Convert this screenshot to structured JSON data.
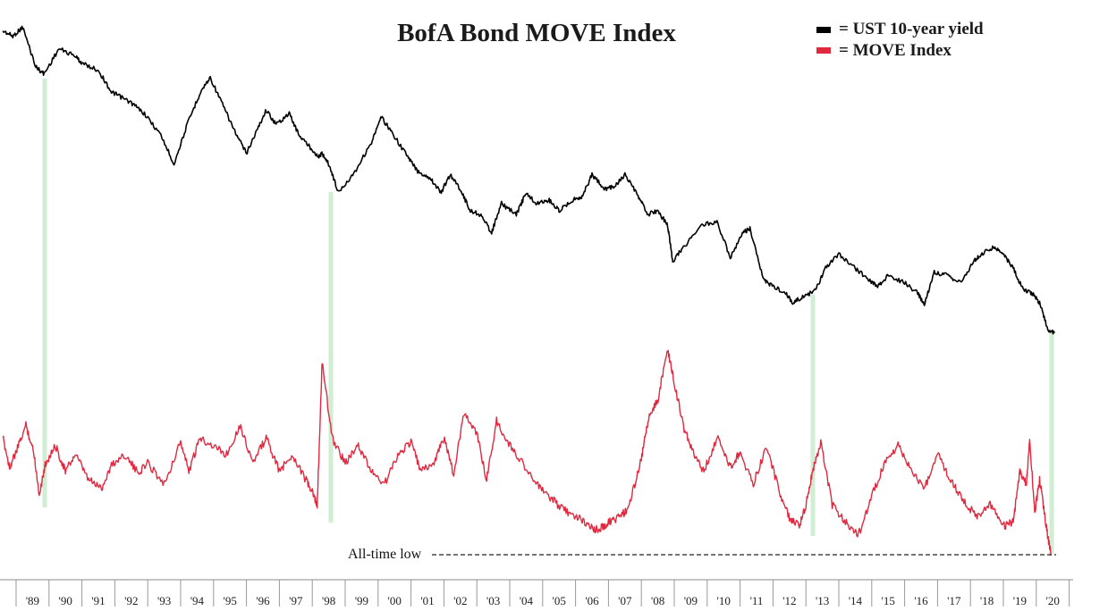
{
  "chart_data": {
    "type": "line",
    "title": "BofA Bond MOVE Index",
    "xlabel": "",
    "ylabel": "",
    "x_tick_labels": [
      "'89",
      "'90",
      "'91",
      "'92",
      "'93",
      "'94",
      "'95",
      "'96",
      "'97",
      "'98",
      "'99",
      "'00",
      "'01",
      "'02",
      "'03",
      "'04",
      "'05",
      "'06",
      "'07",
      "'08",
      "'09",
      "'10",
      "'11",
      "'12",
      "'13",
      "'14",
      "'15",
      "'16",
      "'17",
      "'18",
      "'19",
      "'20"
    ],
    "legend": {
      "placement": "top-right",
      "entries": [
        {
          "label": "= UST 10-year yield",
          "color": "#000000"
        },
        {
          "label": "= MOVE Index",
          "color": "#e0293f"
        }
      ]
    },
    "series": [
      {
        "name": "UST 10-year yield",
        "color": "#000000",
        "x": [
          1988.6,
          1988.9,
          1989.2,
          1989.6,
          1989.85,
          1990.3,
          1990.8,
          1991.0,
          1991.5,
          1991.9,
          1992.1,
          1992.5,
          1992.9,
          1993.4,
          1993.8,
          1994.2,
          1994.6,
          1994.9,
          1995.3,
          1995.7,
          1996.0,
          1996.3,
          1996.6,
          1996.9,
          1997.3,
          1997.6,
          1997.9,
          1998.2,
          1998.3,
          1998.5,
          1998.8,
          1999.3,
          1999.8,
          2000.1,
          2000.4,
          2000.9,
          2001.2,
          2001.6,
          2001.9,
          2002.2,
          2002.5,
          2002.8,
          2003.1,
          2003.45,
          2003.75,
          2004.2,
          2004.5,
          2004.8,
          2005.2,
          2005.5,
          2005.9,
          2006.2,
          2006.5,
          2006.9,
          2007.2,
          2007.5,
          2007.9,
          2008.2,
          2008.5,
          2008.8,
          2008.95,
          2009.3,
          2009.8,
          2010.3,
          2010.7,
          2011.1,
          2011.3,
          2011.7,
          2012.0,
          2012.4,
          2012.6,
          2012.9,
          2013.3,
          2013.6,
          2014.0,
          2014.5,
          2014.9,
          2015.2,
          2015.5,
          2016.0,
          2016.4,
          2016.6,
          2016.9,
          2017.3,
          2017.7,
          2018.1,
          2018.35,
          2018.7,
          2019.0,
          2019.3,
          2019.6,
          2019.9,
          2020.1,
          2020.35,
          2020.55
        ],
        "values": [
          9.1,
          8.95,
          9.2,
          8.1,
          7.9,
          8.6,
          8.4,
          8.2,
          8.0,
          7.4,
          7.3,
          7.1,
          6.8,
          6.2,
          5.4,
          6.5,
          7.4,
          7.8,
          7.0,
          6.2,
          5.7,
          6.3,
          6.9,
          6.5,
          6.8,
          6.2,
          5.9,
          5.6,
          5.7,
          5.4,
          4.6,
          5.2,
          6.0,
          6.7,
          6.3,
          5.6,
          5.2,
          5.0,
          4.6,
          5.1,
          4.7,
          4.1,
          4.0,
          3.5,
          4.3,
          4.0,
          4.6,
          4.3,
          4.4,
          4.1,
          4.4,
          4.5,
          5.1,
          4.7,
          4.8,
          5.1,
          4.5,
          4.0,
          4.1,
          3.7,
          2.7,
          3.1,
          3.7,
          3.8,
          2.8,
          3.5,
          3.6,
          2.2,
          2.0,
          1.8,
          1.55,
          1.7,
          1.9,
          2.5,
          2.9,
          2.5,
          2.2,
          2.0,
          2.3,
          2.1,
          1.8,
          1.5,
          2.4,
          2.3,
          2.1,
          2.7,
          2.9,
          3.1,
          2.9,
          2.5,
          1.9,
          1.8,
          1.55,
          0.8,
          0.7
        ]
      },
      {
        "name": "MOVE Index",
        "color": "#e0293f",
        "x": [
          1988.6,
          1988.8,
          1989.0,
          1989.3,
          1989.55,
          1989.7,
          1989.9,
          1990.2,
          1990.5,
          1990.8,
          1991.2,
          1991.6,
          1991.9,
          1992.3,
          1992.7,
          1993.0,
          1993.5,
          1994.0,
          1994.25,
          1994.6,
          1995.0,
          1995.4,
          1995.8,
          1996.2,
          1996.6,
          1997.0,
          1997.4,
          1997.8,
          1998.0,
          1998.15,
          1998.3,
          1998.6,
          1999.0,
          1999.4,
          1999.8,
          2000.2,
          2000.6,
          2001.0,
          2001.3,
          2001.7,
          2002.0,
          2002.3,
          2002.6,
          2003.0,
          2003.3,
          2003.6,
          2004.0,
          2004.4,
          2004.8,
          2005.2,
          2005.6,
          2006.0,
          2006.4,
          2006.7,
          2007.0,
          2007.3,
          2007.6,
          2008.0,
          2008.2,
          2008.5,
          2008.8,
          2009.0,
          2009.3,
          2009.6,
          2009.9,
          2010.3,
          2010.7,
          2011.0,
          2011.4,
          2011.8,
          2012.2,
          2012.5,
          2012.8,
          2013.0,
          2013.2,
          2013.45,
          2013.8,
          2014.2,
          2014.6,
          2015.0,
          2015.4,
          2015.8,
          2016.2,
          2016.6,
          2017.0,
          2017.4,
          2017.8,
          2018.2,
          2018.6,
          2019.0,
          2019.3,
          2019.5,
          2019.7,
          2019.8,
          2019.95,
          2020.1,
          2020.3,
          2020.45
        ],
        "values": [
          112,
          98,
          105,
          118,
          104,
          85,
          100,
          108,
          96,
          104,
          92,
          88,
          99,
          104,
          95,
          100,
          90,
          110,
          96,
          112,
          108,
          104,
          118,
          100,
          112,
          96,
          104,
          92,
          86,
          80,
          148,
          112,
          100,
          108,
          96,
          90,
          104,
          110,
          96,
          100,
          112,
          94,
          124,
          114,
          92,
          120,
          108,
          100,
          90,
          84,
          78,
          75,
          70,
          68,
          72,
          74,
          78,
          102,
          120,
          130,
          154,
          138,
          116,
          104,
          96,
          112,
          98,
          105,
          90,
          108,
          86,
          74,
          70,
          80,
          96,
          110,
          80,
          72,
          66,
          84,
          100,
          108,
          96,
          88,
          104,
          92,
          82,
          74,
          80,
          70,
          72,
          96,
          90,
          112,
          76,
          92,
          70,
          56
        ]
      }
    ],
    "annotations": [
      {
        "text": "All-time low"
      }
    ]
  }
}
